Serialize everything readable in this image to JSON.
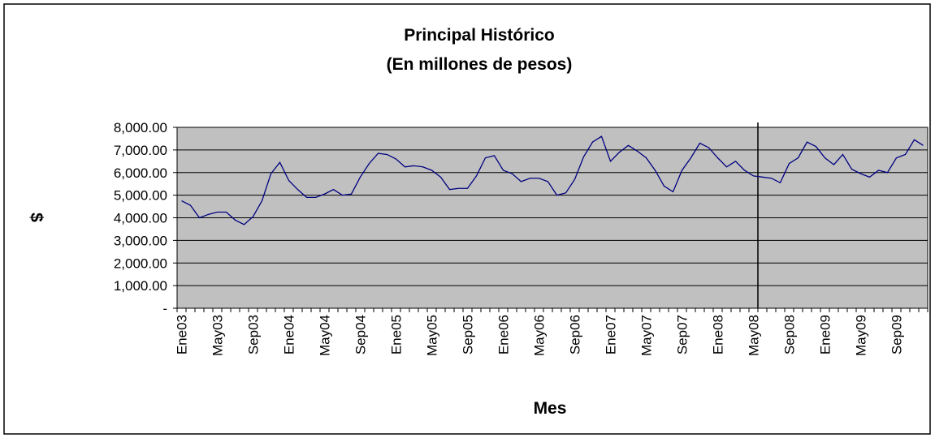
{
  "chart_data": {
    "type": "line",
    "title": "Principal Histórico",
    "subtitle": "(En millones de pesos)",
    "x_label": "Mes",
    "y_label": "$",
    "categories": [
      "Ene03",
      null,
      null,
      null,
      "May03",
      null,
      null,
      null,
      "Sep03",
      null,
      null,
      null,
      "Ene04",
      null,
      null,
      null,
      "May04",
      null,
      null,
      null,
      "Sep04",
      null,
      null,
      null,
      "Ene05",
      null,
      null,
      null,
      "May05",
      null,
      null,
      null,
      "Sep05",
      null,
      null,
      null,
      "Ene06",
      null,
      null,
      null,
      "May06",
      null,
      null,
      null,
      "Sep06",
      null,
      null,
      null,
      "Ene07",
      null,
      null,
      null,
      "May07",
      null,
      null,
      null,
      "Sep07",
      null,
      null,
      null,
      "Ene08",
      null,
      null,
      null,
      "May08",
      null,
      null,
      null,
      "Sep08",
      null,
      null,
      null,
      "Ene09",
      null,
      null,
      null,
      "May09",
      null,
      null,
      null,
      "Sep09",
      null,
      null,
      null
    ],
    "series": [
      {
        "name": "Principal",
        "color": "#000080",
        "values": [
          4750,
          4550,
          4000,
          4150,
          4250,
          4250,
          3900,
          3700,
          4050,
          4750,
          5950,
          6450,
          5650,
          5250,
          4900,
          4900,
          5050,
          5250,
          5000,
          5050,
          5800,
          6400,
          6850,
          6800,
          6600,
          6250,
          6300,
          6250,
          6100,
          5800,
          5250,
          5300,
          5300,
          5850,
          6650,
          6750,
          6100,
          5950,
          5600,
          5750,
          5750,
          5600,
          5000,
          5100,
          5700,
          6700,
          7350,
          7600,
          6500,
          6900,
          7200,
          6950,
          6650,
          6100,
          5400,
          5150,
          6100,
          6650,
          7300,
          7100,
          6650,
          6250,
          6500,
          6100,
          5850,
          5800,
          5750,
          5550,
          6400,
          6650,
          7350,
          7150,
          6650,
          6350,
          6800,
          6150,
          5950,
          5800,
          6100,
          6000,
          6650,
          6800,
          7450,
          7200
        ]
      }
    ],
    "ylim": [
      0,
      8000
    ],
    "yticks": [
      {
        "value": 0,
        "label": "-"
      },
      {
        "value": 1000,
        "label": "1,000.00"
      },
      {
        "value": 2000,
        "label": "2,000.00"
      },
      {
        "value": 3000,
        "label": "3,000.00"
      },
      {
        "value": 4000,
        "label": "4,000.00"
      },
      {
        "value": 5000,
        "label": "5,000.00"
      },
      {
        "value": 6000,
        "label": "6,000.00"
      },
      {
        "value": 7000,
        "label": "7,000.00"
      },
      {
        "value": 8000,
        "label": "8,000.00"
      }
    ],
    "grid": true,
    "vline_at": "May08",
    "plot_background": "#c0c0c0"
  }
}
